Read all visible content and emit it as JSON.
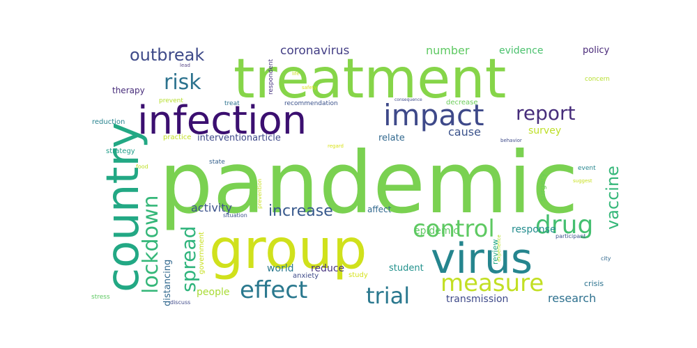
{
  "words": [
    {
      "text": "pandemic",
      "color": "#7ad151"
    },
    {
      "text": "treatment",
      "color": "#86d549"
    },
    {
      "text": "group",
      "color": "#d0e11c"
    },
    {
      "text": "country",
      "color": "#22a884"
    },
    {
      "text": "infection",
      "color": "#3b0f70"
    },
    {
      "text": "virus",
      "color": "#25858e"
    },
    {
      "text": "impact",
      "color": "#3e4989"
    },
    {
      "text": "control",
      "color": "#5ec962"
    },
    {
      "text": "drug",
      "color": "#44bf70"
    },
    {
      "text": "measure",
      "color": "#c2df23"
    },
    {
      "text": "effect",
      "color": "#2a788e"
    },
    {
      "text": "lockdown",
      "color": "#35b779"
    },
    {
      "text": "spread",
      "color": "#2fb47c"
    },
    {
      "text": "trial",
      "color": "#2a788e"
    },
    {
      "text": "report",
      "color": "#472d7b"
    },
    {
      "text": "risk",
      "color": "#2c728e"
    },
    {
      "text": "outbreak",
      "color": "#3e4a89"
    },
    {
      "text": "vaccine",
      "color": "#35b779"
    },
    {
      "text": "increase",
      "color": "#38598c"
    },
    {
      "text": "activity",
      "color": "#3b528b"
    },
    {
      "text": "coronavirus",
      "color": "#433e85"
    },
    {
      "text": "number",
      "color": "#5ec962"
    },
    {
      "text": "evidence",
      "color": "#4ac16d"
    },
    {
      "text": "policy",
      "color": "#482878"
    },
    {
      "text": "cause",
      "color": "#3b528b"
    },
    {
      "text": "survey",
      "color": "#bddf26"
    },
    {
      "text": "interventionarticle",
      "color": "#3e4989"
    },
    {
      "text": "relate",
      "color": "#31688e"
    },
    {
      "text": "response",
      "color": "#228c8d"
    },
    {
      "text": "epidemic",
      "color": "#5ec962"
    },
    {
      "text": "research",
      "color": "#2d708e"
    },
    {
      "text": "transmission",
      "color": "#3e4989"
    },
    {
      "text": "distancing",
      "color": "#31688e"
    },
    {
      "text": "government",
      "color": "#c8e020"
    },
    {
      "text": "people",
      "color": "#a8db34"
    },
    {
      "text": "world",
      "color": "#2a788e"
    },
    {
      "text": "reduce",
      "color": "#46337e"
    },
    {
      "text": "anxiety",
      "color": "#3e4a89"
    },
    {
      "text": "study",
      "color": "#d5e21a"
    },
    {
      "text": "student",
      "color": "#21918c"
    },
    {
      "text": "review",
      "color": "#22a884"
    },
    {
      "text": "crisis",
      "color": "#2c728e"
    },
    {
      "text": "surgery",
      "color": "#6ccd5a"
    },
    {
      "text": "affect",
      "color": "#31688e"
    },
    {
      "text": "therapy",
      "color": "#472c7a"
    },
    {
      "text": "reduction",
      "color": "#26828e"
    },
    {
      "text": "strategy",
      "color": "#1f9e89"
    },
    {
      "text": "practice",
      "color": "#c2df23"
    },
    {
      "text": "prevent",
      "color": "#b5de2b"
    },
    {
      "text": "treat",
      "color": "#2c728e"
    },
    {
      "text": "recommendation",
      "color": "#3b528b"
    },
    {
      "text": "decrease",
      "color": "#6ccd5a"
    },
    {
      "text": "concern",
      "color": "#b5de2b"
    },
    {
      "text": "respondent",
      "color": "#46327e"
    },
    {
      "text": "life",
      "color": "#c8e020"
    },
    {
      "text": "safety",
      "color": "#d8e219"
    },
    {
      "text": "lead",
      "color": "#5c4a8a"
    },
    {
      "text": "consequence",
      "color": "#3e4a89"
    },
    {
      "text": "state",
      "color": "#35608d"
    },
    {
      "text": "food",
      "color": "#bddf26"
    },
    {
      "text": "prevention",
      "color": "#c8e020"
    },
    {
      "text": "situation",
      "color": "#3b528b"
    },
    {
      "text": "regard",
      "color": "#d8e219"
    },
    {
      "text": "behavior",
      "color": "#3e4a89"
    },
    {
      "text": "event",
      "color": "#25858e"
    },
    {
      "text": "suggest",
      "color": "#c8e020"
    },
    {
      "text": "experience",
      "color": "#b5de2b"
    },
    {
      "text": "participant",
      "color": "#3b528b"
    },
    {
      "text": "city",
      "color": "#31688e"
    },
    {
      "text": "stress",
      "color": "#5ec962"
    },
    {
      "text": "discuss",
      "color": "#3e4989"
    }
  ]
}
